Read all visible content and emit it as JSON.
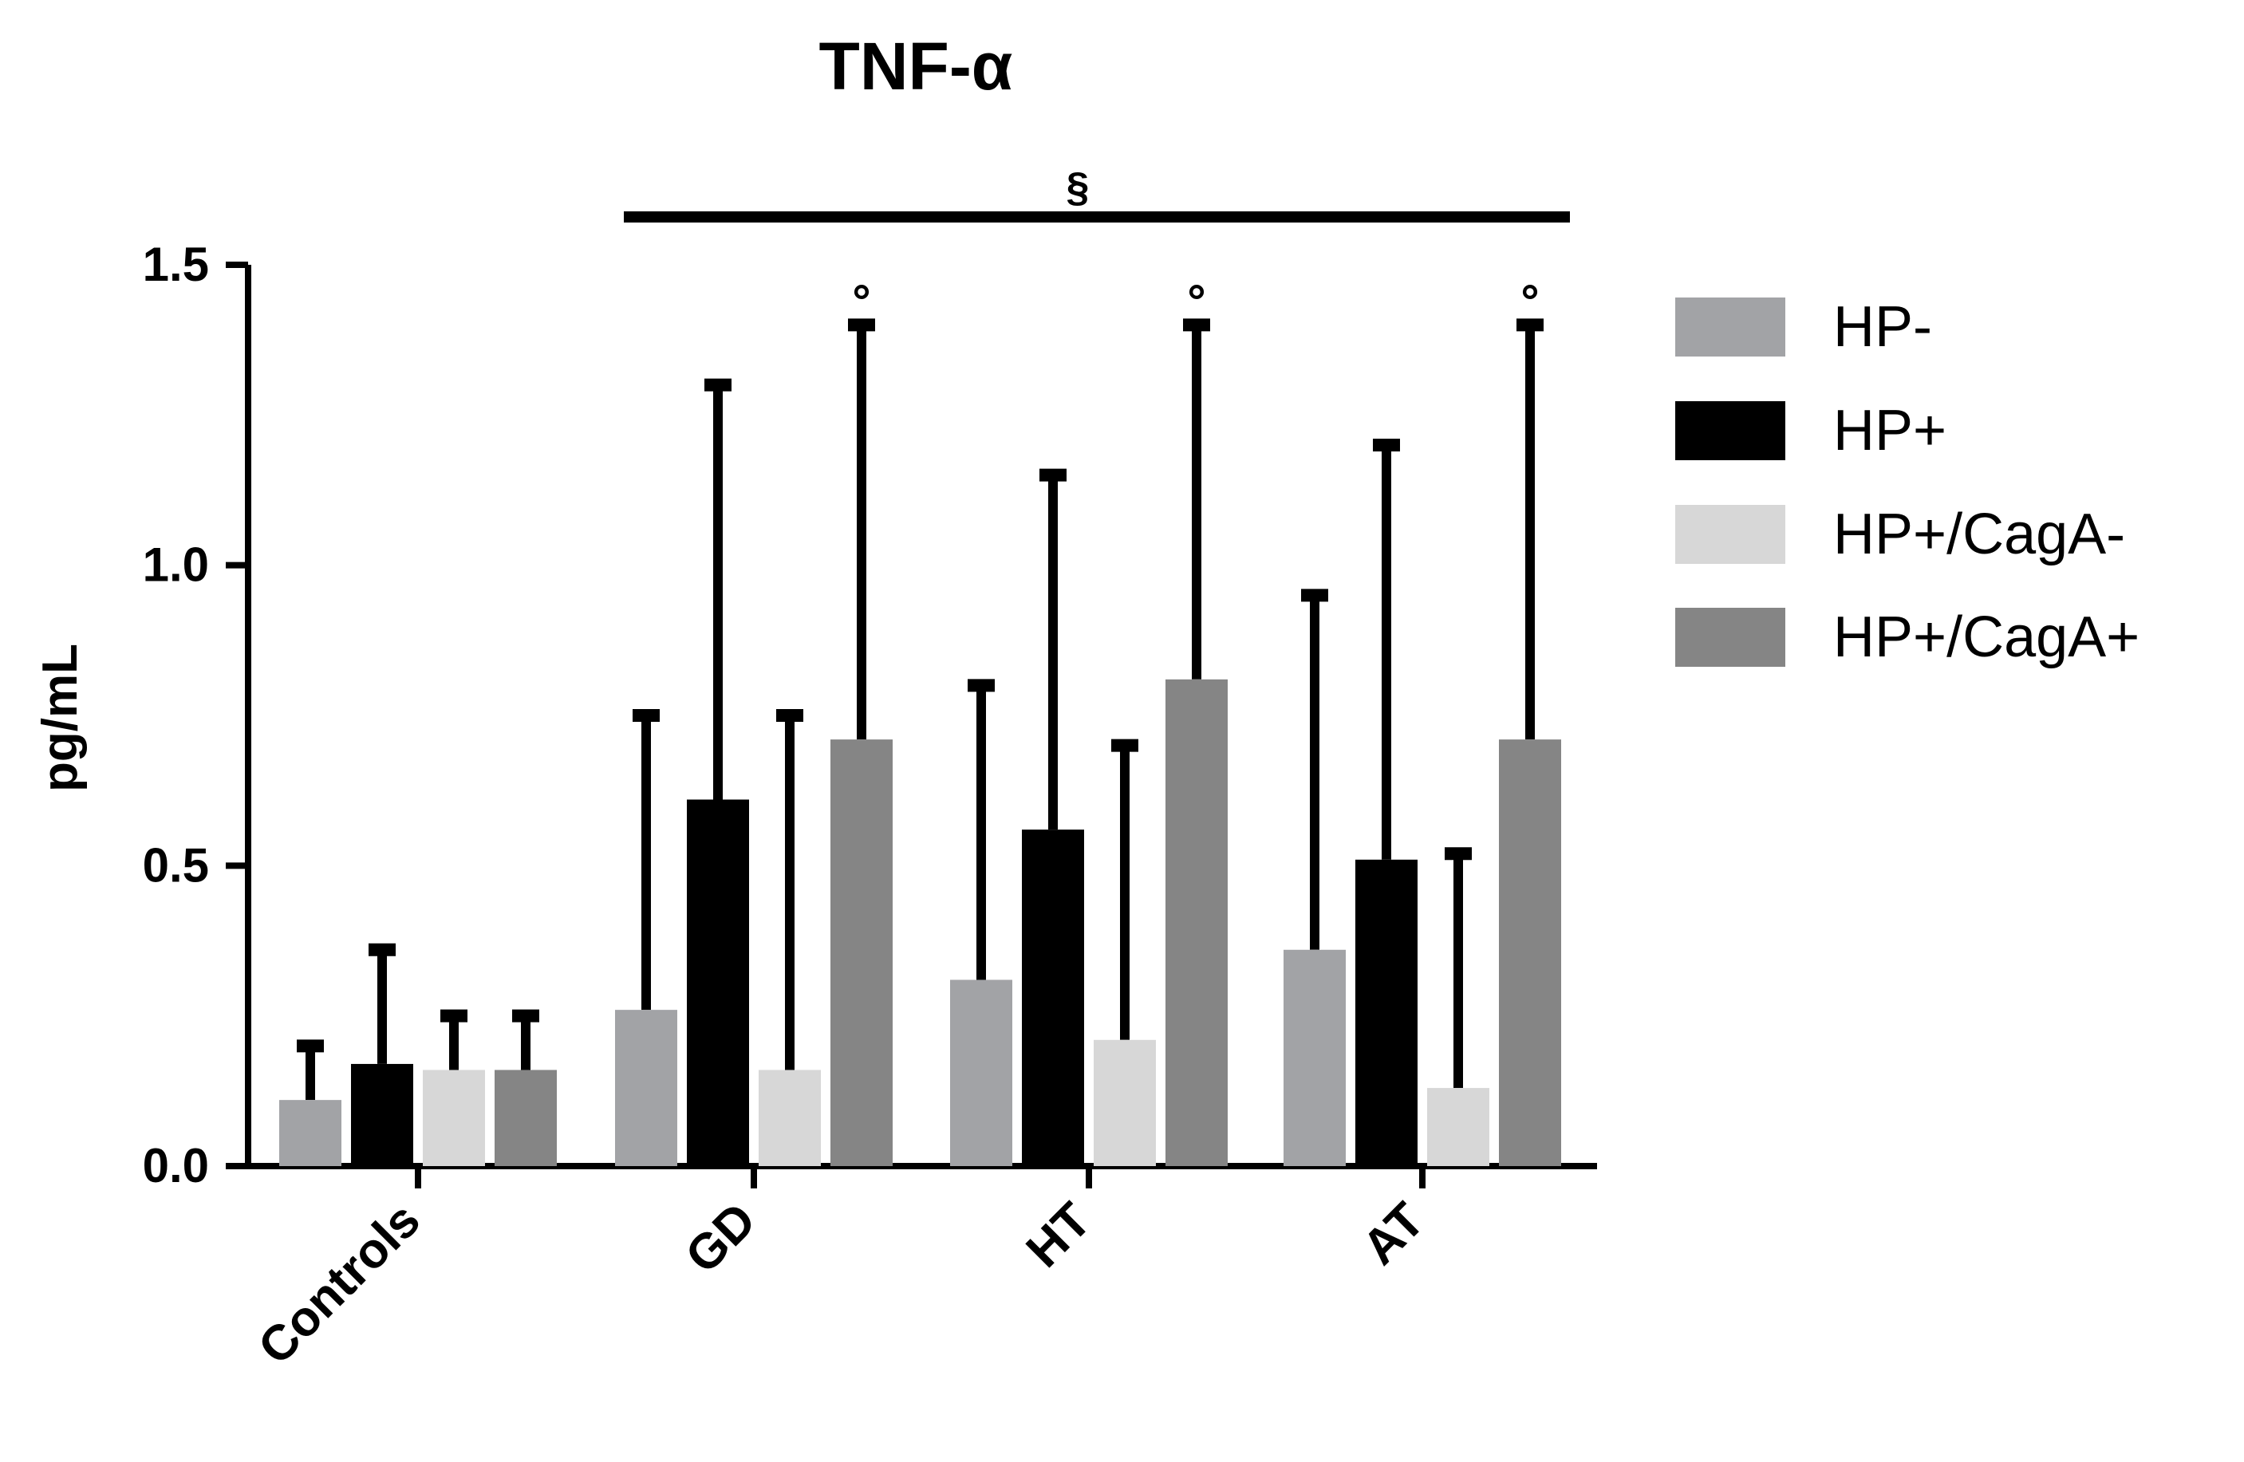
{
  "chart_data": {
    "type": "bar",
    "title": "TNF-α",
    "xlabel": "",
    "ylabel": "pg/mL",
    "ylim": [
      0,
      1.5
    ],
    "yticks": [
      "0.0",
      "0.5",
      "1.0",
      "1.5"
    ],
    "grid": false,
    "legend_position": "right",
    "categories": [
      "Controls",
      "GD",
      "HT",
      "AT"
    ],
    "series": [
      {
        "name": "HP-",
        "color": "#a2a3a6",
        "values": [
          0.11,
          0.26,
          0.31,
          0.36
        ],
        "error_upper": [
          0.2,
          0.75,
          0.8,
          0.95
        ]
      },
      {
        "name": "HP+",
        "color": "#000000",
        "values": [
          0.17,
          0.61,
          0.56,
          0.51
        ],
        "error_upper": [
          0.36,
          1.3,
          1.15,
          1.2
        ]
      },
      {
        "name": "HP+/CagA-",
        "color": "#d7d7d7",
        "values": [
          0.16,
          0.16,
          0.21,
          0.13
        ],
        "error_upper": [
          0.25,
          0.75,
          0.7,
          0.52
        ]
      },
      {
        "name": "HP+/CagA+",
        "color": "#858585",
        "values": [
          0.16,
          0.71,
          0.81,
          0.71
        ],
        "error_upper": [
          0.25,
          1.4,
          1.4,
          1.4
        ]
      }
    ],
    "annotations": {
      "bracket_symbol": "§",
      "bar_marker_symbol": "°",
      "bar_marker_series": "HP+/CagA+",
      "bar_marker_categories": [
        "GD",
        "HT",
        "AT"
      ],
      "bracket_categories": [
        "GD",
        "HT",
        "AT"
      ]
    }
  }
}
